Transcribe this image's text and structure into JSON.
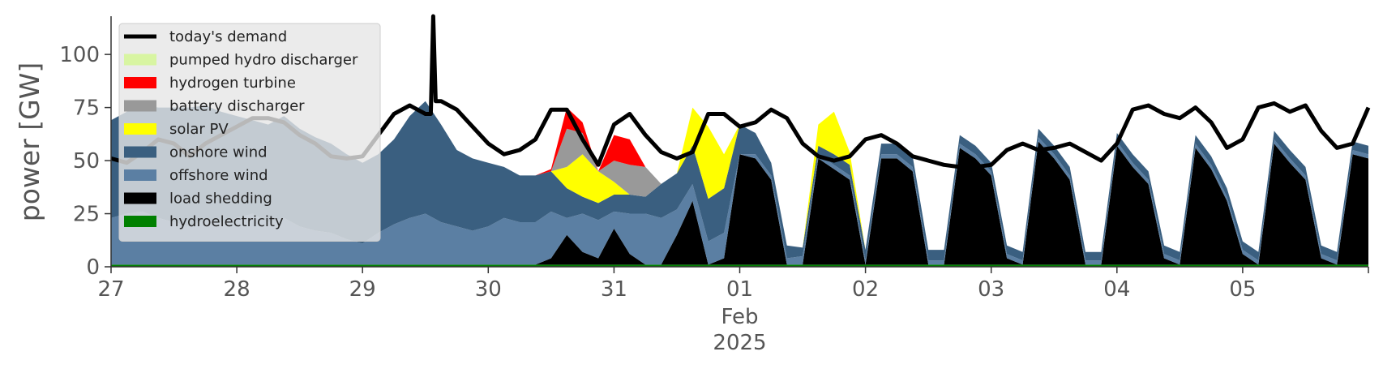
{
  "chart_data": {
    "type": "area",
    "ylabel": "power [GW]",
    "ylim": [
      0,
      118
    ],
    "yticks": [
      0,
      25,
      50,
      75,
      100
    ],
    "x_start": "2025-01-27T00:00",
    "x_end": "2025-02-06T00:00",
    "x_step_hours": 3,
    "xticks": [
      {
        "date": "2025-01-27",
        "label": "27"
      },
      {
        "date": "2025-01-28",
        "label": "28"
      },
      {
        "date": "2025-01-29",
        "label": "29"
      },
      {
        "date": "2025-01-30",
        "label": "30"
      },
      {
        "date": "2025-01-31",
        "label": "31"
      },
      {
        "date": "2025-02-01",
        "label": "01",
        "sublabels": [
          "Feb",
          "2025"
        ]
      },
      {
        "date": "2025-02-02",
        "label": "02"
      },
      {
        "date": "2025-02-03",
        "label": "03"
      },
      {
        "date": "2025-02-04",
        "label": "04"
      },
      {
        "date": "2025-02-05",
        "label": "05"
      }
    ],
    "legend_position": "top-left",
    "grid": false,
    "stack_series": [
      {
        "name": "hydroelectricity",
        "color": "#008000",
        "values": [
          1,
          1,
          1,
          1,
          1,
          1,
          1,
          1,
          1,
          1,
          1,
          1,
          1,
          1,
          1,
          1,
          1,
          1,
          1,
          1,
          1,
          1,
          1,
          1,
          1,
          1,
          1,
          1,
          1,
          1,
          1,
          1,
          1,
          1,
          1,
          1,
          1,
          1,
          1,
          1,
          1,
          1,
          1,
          1,
          1,
          1,
          1,
          1,
          1,
          1,
          1,
          1,
          1,
          1,
          1,
          1,
          1,
          1,
          1,
          1,
          1,
          1,
          1,
          1,
          1,
          1,
          1,
          1,
          1,
          1,
          1,
          1,
          1,
          1,
          1,
          1,
          1,
          1,
          1,
          1,
          1
        ]
      },
      {
        "name": "load shedding",
        "color": "#000000",
        "values": [
          0,
          0,
          0,
          0,
          0,
          0,
          0,
          0,
          0,
          0,
          0,
          0,
          0,
          0,
          0,
          0,
          0,
          0,
          0,
          0,
          0,
          0,
          0,
          0,
          0,
          0,
          0,
          0,
          3,
          14,
          6,
          3,
          17,
          5,
          0,
          0,
          14,
          30,
          0,
          3,
          52,
          50,
          40,
          0,
          0,
          50,
          45,
          40,
          0,
          50,
          50,
          44,
          0,
          0,
          55,
          50,
          42,
          3,
          0,
          58,
          50,
          40,
          0,
          0,
          56,
          46,
          38,
          3,
          0,
          55,
          45,
          30,
          5,
          0,
          57,
          48,
          40,
          3,
          0,
          52,
          50
        ]
      },
      {
        "name": "offshore wind",
        "color": "#5b7fa3",
        "values": [
          22,
          24,
          25,
          22,
          20,
          18,
          21,
          20,
          22,
          24,
          20,
          22,
          18,
          16,
          15,
          12,
          10,
          15,
          19,
          22,
          24,
          20,
          18,
          16,
          18,
          22,
          20,
          20,
          22,
          8,
          18,
          18,
          8,
          19,
          24,
          22,
          12,
          8,
          11,
          12,
          0,
          2,
          2,
          3,
          4,
          2,
          2,
          2,
          2,
          2,
          2,
          2,
          2,
          2,
          2,
          2,
          2,
          2,
          2,
          2,
          2,
          2,
          2,
          2,
          2,
          2,
          2,
          2,
          2,
          2,
          2,
          2,
          2,
          2,
          2,
          2,
          2,
          2,
          2,
          2,
          2
        ]
      },
      {
        "name": "onshore wind",
        "color": "#3a5f80",
        "values": [
          46,
          48,
          50,
          52,
          54,
          56,
          54,
          52,
          48,
          44,
          46,
          48,
          46,
          44,
          42,
          40,
          38,
          37,
          40,
          48,
          53,
          46,
          36,
          34,
          30,
          24,
          22,
          22,
          19,
          14,
          8,
          8,
          8,
          9,
          8,
          16,
          17,
          18,
          20,
          21,
          14,
          10,
          6,
          6,
          4,
          4,
          5,
          5,
          5,
          5,
          5,
          5,
          5,
          5,
          4,
          4,
          4,
          4,
          4,
          4,
          4,
          4,
          4,
          4,
          4,
          4,
          4,
          4,
          4,
          4,
          4,
          4,
          4,
          4,
          4,
          4,
          4,
          4,
          4,
          4,
          4
        ]
      },
      {
        "name": "solar PV",
        "color": "#ffff00",
        "values": [
          0,
          0,
          0,
          0,
          0,
          0,
          0,
          0,
          0,
          0,
          0,
          0,
          0,
          0,
          0,
          0,
          0,
          0,
          0,
          0,
          0,
          0,
          0,
          0,
          0,
          0,
          0,
          0,
          0,
          10,
          20,
          15,
          6,
          0,
          0,
          0,
          0,
          18,
          34,
          16,
          0,
          0,
          0,
          0,
          0,
          10,
          20,
          6,
          0,
          0,
          0,
          0,
          0,
          0,
          0,
          0,
          0,
          0,
          0,
          0,
          0,
          0,
          0,
          0,
          0,
          0,
          0,
          0,
          0,
          0,
          0,
          0,
          0,
          0,
          0,
          0,
          0,
          0,
          0,
          0,
          0
        ]
      },
      {
        "name": "battery discharger",
        "color": "#999999",
        "values": [
          0,
          0,
          0,
          0,
          0,
          0,
          0,
          0,
          0,
          0,
          0,
          0,
          0,
          0,
          0,
          0,
          0,
          0,
          0,
          0,
          0,
          0,
          0,
          0,
          0,
          0,
          0,
          0,
          0,
          18,
          10,
          0,
          10,
          14,
          14,
          0,
          0,
          0,
          0,
          0,
          0,
          0,
          0,
          0,
          0,
          0,
          0,
          0,
          0,
          0,
          0,
          0,
          0,
          0,
          0,
          0,
          0,
          0,
          0,
          0,
          0,
          0,
          0,
          0,
          0,
          0,
          0,
          0,
          0,
          0,
          0,
          0,
          0,
          0,
          0,
          0,
          0,
          0,
          0,
          0,
          0
        ]
      },
      {
        "name": "hydrogen turbine",
        "color": "#ff0000",
        "values": [
          0,
          0,
          0,
          0,
          0,
          0,
          0,
          0,
          0,
          0,
          0,
          0,
          0,
          0,
          0,
          0,
          0,
          0,
          0,
          0,
          0,
          0,
          0,
          0,
          0,
          0,
          0,
          0,
          1,
          10,
          5,
          0,
          12,
          12,
          0,
          0,
          0,
          0,
          0,
          0,
          0,
          0,
          0,
          0,
          0,
          0,
          0,
          0,
          0,
          0,
          0,
          0,
          0,
          0,
          0,
          0,
          0,
          0,
          0,
          0,
          0,
          0,
          0,
          0,
          0,
          0,
          0,
          0,
          0,
          0,
          0,
          0,
          0,
          0,
          0,
          0,
          0,
          0,
          0,
          0,
          0
        ]
      },
      {
        "name": "pumped hydro discharger",
        "color": "#d8f5a2",
        "values": [
          0,
          0,
          0,
          0,
          0,
          0,
          0,
          0,
          0,
          0,
          0,
          0,
          0,
          0,
          0,
          0,
          0,
          0,
          0,
          0,
          0,
          0,
          0,
          0,
          0,
          0,
          0,
          0,
          0,
          0,
          0,
          0,
          0,
          0,
          0,
          0,
          0,
          0,
          0,
          0,
          0,
          0,
          0,
          0,
          0,
          0,
          0,
          0,
          0,
          0,
          0,
          0,
          0,
          0,
          0,
          0,
          0,
          0,
          0,
          0,
          0,
          0,
          0,
          0,
          0,
          0,
          0,
          0,
          0,
          0,
          0,
          0,
          0,
          0,
          0,
          0,
          0,
          0,
          0,
          0,
          0
        ]
      }
    ],
    "line_series": [
      {
        "name": "today's demand",
        "color": "#000000",
        "values": [
          51,
          49,
          54,
          60,
          58,
          52,
          58,
          62,
          66,
          70,
          70,
          68,
          62,
          58,
          52,
          51,
          52,
          62,
          72,
          76,
          72,
          78,
          74,
          66,
          58,
          53,
          55,
          60,
          74,
          74,
          60,
          48,
          67,
          72,
          62,
          54,
          51,
          54,
          72,
          72,
          66,
          68,
          74,
          70,
          58,
          52,
          50,
          52,
          60,
          62,
          58,
          52,
          50,
          48,
          47,
          47,
          48,
          55,
          58,
          55,
          56,
          58,
          54,
          50,
          58,
          74,
          76,
          72,
          70,
          75,
          68,
          56,
          60,
          75,
          77,
          73,
          76,
          64,
          56,
          58,
          75
        ]
      }
    ],
    "demand_spike": {
      "x": "2025-01-29T13:30",
      "value": 118
    }
  }
}
